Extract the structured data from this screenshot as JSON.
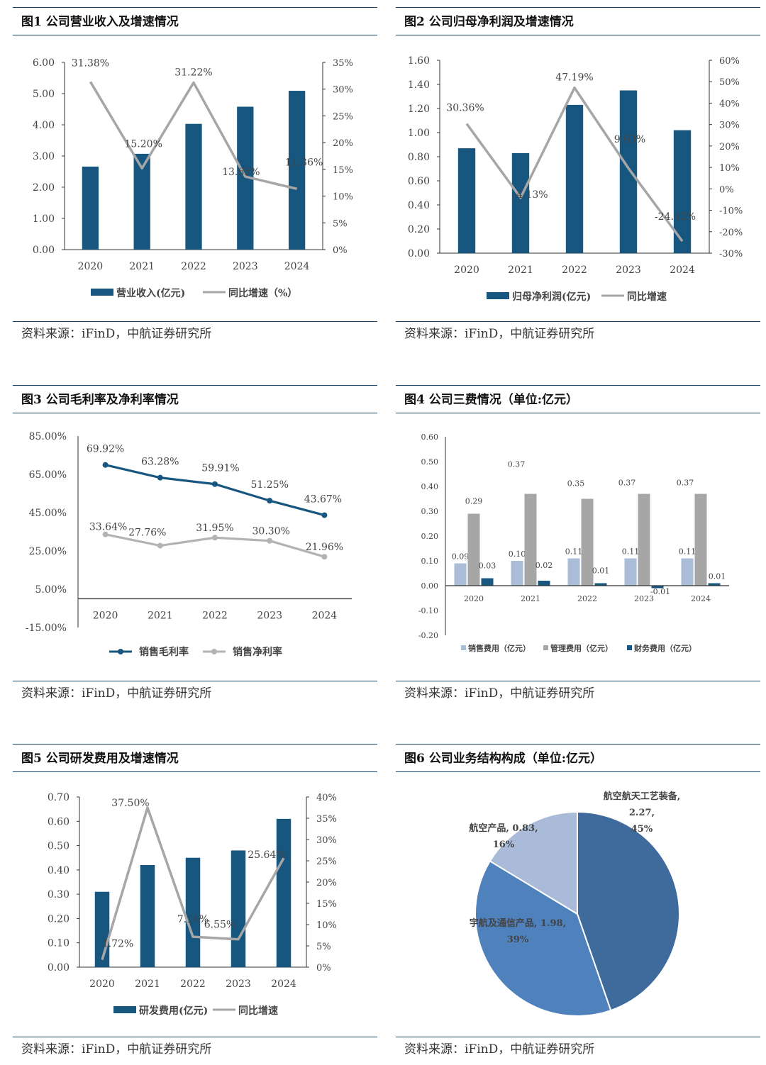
{
  "charts": [
    {
      "title": "图1  公司营业收入及增速情况",
      "source": "资料来源：iFinD，中航证券研究所",
      "chart_data": {
        "type": "bar",
        "categories": [
          "2020",
          "2021",
          "2022",
          "2023",
          "2024"
        ],
        "series": [
          {
            "name": "营业收入(亿元)",
            "kind": "bar",
            "axis": "left",
            "color": "#17567f",
            "values": [
              2.66,
              3.07,
              4.03,
              4.58,
              5.09
            ]
          },
          {
            "name": "同比增速（%）",
            "kind": "line",
            "axis": "right",
            "color": "#a6a6a6",
            "values": [
              31.38,
              15.2,
              31.22,
              13.65,
              11.36
            ],
            "labels": [
              "31.38%",
              "15.20%",
              "31.22%",
              "13.65%",
              "11.36%"
            ]
          }
        ],
        "ylim": [
          0,
          6
        ],
        "y_ticks": [
          "0.00",
          "1.00",
          "2.00",
          "3.00",
          "4.00",
          "5.00",
          "6.00"
        ],
        "y2lim": [
          0,
          35
        ],
        "y2_ticks": [
          "0%",
          "5%",
          "10%",
          "15%",
          "20%",
          "25%",
          "30%",
          "35%"
        ],
        "legend": "bottom"
      }
    },
    {
      "title": "图2  公司归母净利润及增速情况",
      "source": "资料来源：iFinD，中航证券研究所",
      "chart_data": {
        "type": "bar",
        "categories": [
          "2020",
          "2021",
          "2022",
          "2023",
          "2024"
        ],
        "series": [
          {
            "name": "归母净利润(亿元)",
            "kind": "bar",
            "axis": "left",
            "color": "#17567f",
            "values": [
              0.87,
              0.83,
              1.23,
              1.35,
              1.02
            ]
          },
          {
            "name": "同比增速",
            "kind": "line",
            "axis": "right",
            "color": "#a6a6a6",
            "values": [
              30.36,
              -4.13,
              47.19,
              9.63,
              -24.42
            ],
            "labels": [
              "30.36%",
              "-4.13%",
              "47.19%",
              "9.63%",
              "-24.42%"
            ]
          }
        ],
        "ylim": [
          0,
          1.6
        ],
        "y_ticks": [
          "0.00",
          "0.20",
          "0.40",
          "0.60",
          "0.80",
          "1.00",
          "1.20",
          "1.40",
          "1.60"
        ],
        "y2lim": [
          -30,
          60
        ],
        "y2_ticks": [
          "-30%",
          "-20%",
          "-10%",
          "0%",
          "10%",
          "20%",
          "30%",
          "40%",
          "50%",
          "60%"
        ],
        "legend": "bottom"
      }
    },
    {
      "title": "图3  公司毛利率及净利率情况",
      "source": "资料来源：iFinD，中航证券研究所",
      "chart_data": {
        "type": "line",
        "categories": [
          "2020",
          "2021",
          "2022",
          "2023",
          "2024"
        ],
        "series": [
          {
            "name": "销售毛利率",
            "color": "#17567f",
            "values": [
              69.92,
              63.28,
              59.91,
              51.25,
              43.67
            ],
            "labels": [
              "69.92%",
              "63.28%",
              "59.91%",
              "51.25%",
              "43.67%"
            ]
          },
          {
            "name": "销售净利率",
            "color": "#b3b3b3",
            "values": [
              33.64,
              27.76,
              31.95,
              30.3,
              21.96
            ],
            "labels": [
              "33.64%",
              "27.76%",
              "31.95%",
              "30.30%",
              "21.96%"
            ]
          }
        ],
        "ylim": [
          -15,
          85
        ],
        "y_ticks": [
          "-15.00%",
          "5.00%",
          "25.00%",
          "45.00%",
          "65.00%",
          "85.00%"
        ],
        "legend": "bottom"
      }
    },
    {
      "title": "图4  公司三费情况（单位:亿元）",
      "source": "资料来源：iFinD，中航证券研究所",
      "chart_data": {
        "type": "bar",
        "categories": [
          "2020",
          "2021",
          "2022",
          "2023",
          "2024"
        ],
        "series": [
          {
            "name": "销售费用（亿元）",
            "color": "#a9bdd6",
            "values": [
              0.09,
              0.1,
              0.11,
              0.11,
              0.11
            ],
            "labels": [
              "0.09",
              "0.10",
              "0.11",
              "0.11",
              "0.11"
            ]
          },
          {
            "name": "管理费用（亿元）",
            "color": "#a6a6a6",
            "values": [
              0.29,
              0.37,
              0.35,
              0.37,
              0.37
            ],
            "labels": [
              "0.29",
              "0.37",
              "0.35",
              "0.37",
              "0.37"
            ]
          },
          {
            "name": "财务费用（亿元）",
            "color": "#17567f",
            "values": [
              0.03,
              0.02,
              0.01,
              -0.01,
              0.01
            ],
            "labels": [
              "0.03",
              "0.02",
              "0.01",
              "-0.01",
              "0.01"
            ]
          }
        ],
        "ylim": [
          -0.2,
          0.6
        ],
        "y_ticks": [
          "-0.20",
          "-0.10",
          "0.00",
          "0.10",
          "0.20",
          "0.30",
          "0.40",
          "0.50",
          "0.60"
        ],
        "legend": "bottom"
      }
    },
    {
      "title": "图5  公司研发费用及增速情况",
      "source": "资料来源：iFinD，中航证券研究所",
      "chart_data": {
        "type": "bar",
        "categories": [
          "2020",
          "2021",
          "2022",
          "2023",
          "2024"
        ],
        "series": [
          {
            "name": "研发费用(亿元)",
            "kind": "bar",
            "axis": "left",
            "color": "#17567f",
            "values": [
              0.31,
              0.42,
              0.45,
              0.48,
              0.61
            ]
          },
          {
            "name": "同比增速",
            "kind": "line",
            "axis": "right",
            "color": "#a6a6a6",
            "values": [
              1.72,
              37.5,
              7.14,
              6.55,
              25.64
            ],
            "labels": [
              "1.72%",
              "37.50%",
              "7.14%",
              "6.55%",
              "25.64%"
            ]
          }
        ],
        "ylim": [
          0,
          0.7
        ],
        "y_ticks": [
          "0.00",
          "0.10",
          "0.20",
          "0.30",
          "0.40",
          "0.50",
          "0.60",
          "0.70"
        ],
        "y2lim": [
          0,
          40
        ],
        "y2_ticks": [
          "0%",
          "5%",
          "10%",
          "15%",
          "20%",
          "25%",
          "30%",
          "35%",
          "40%"
        ],
        "legend": "bottom"
      }
    },
    {
      "title": "图6  公司业务结构构成（单位:亿元）",
      "source": "资料来源：iFinD，中航证券研究所",
      "chart_data": {
        "type": "pie",
        "slices": [
          {
            "name": "航空航天工艺装备",
            "value": 2.27,
            "percent": "45%",
            "color": "#3f6a9c",
            "label_lines": [
              "航空航天工艺装备,",
              "2.27,",
              "45%"
            ]
          },
          {
            "name": "宇航及通信产品",
            "value": 1.98,
            "percent": "39%",
            "color": "#4f81bd",
            "label_lines": [
              "宇航及通信产品, 1.98,",
              "39%"
            ]
          },
          {
            "name": "航空产品",
            "value": 0.83,
            "percent": "16%",
            "color": "#a9bbd9",
            "label_lines": [
              "航空产品, 0.83,",
              "16%"
            ]
          }
        ]
      }
    }
  ]
}
